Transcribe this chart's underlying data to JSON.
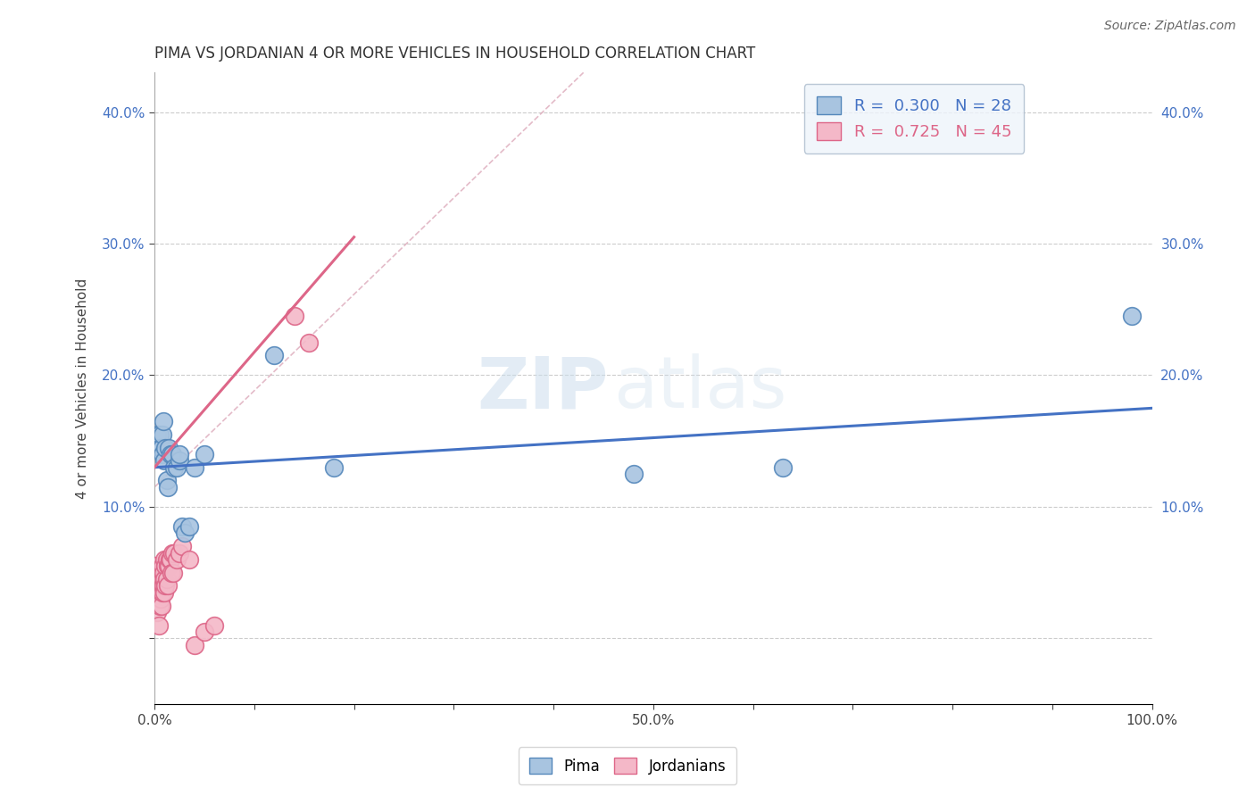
{
  "title": "PIMA VS JORDANIAN 4 OR MORE VEHICLES IN HOUSEHOLD CORRELATION CHART",
  "source_text": "Source: ZipAtlas.com",
  "xlabel": "",
  "ylabel": "4 or more Vehicles in Household",
  "xlim": [
    0,
    1.0
  ],
  "ylim": [
    -0.05,
    0.43
  ],
  "xticks": [
    0.0,
    0.1,
    0.2,
    0.3,
    0.4,
    0.5,
    0.6,
    0.7,
    0.8,
    0.9,
    1.0
  ],
  "xticklabels": [
    "0.0%",
    "",
    "",
    "",
    "",
    "50.0%",
    "",
    "",
    "",
    "",
    "100.0%"
  ],
  "yticks": [
    0.0,
    0.1,
    0.2,
    0.3,
    0.4
  ],
  "yticklabels": [
    "",
    "10.0%",
    "20.0%",
    "30.0%",
    "40.0%"
  ],
  "background_color": "#ffffff",
  "grid_color": "#cccccc",
  "watermark_zip": "ZIP",
  "watermark_atlas": "atlas",
  "pima_color": "#a8c4e0",
  "pima_edge_color": "#5588bb",
  "jordanian_color": "#f4b8c8",
  "jordanian_edge_color": "#dd6688",
  "pima_R": 0.3,
  "pima_N": 28,
  "jordanian_R": 0.725,
  "jordanian_N": 45,
  "pima_line_color": "#4472c4",
  "jordanian_line_color": "#dd6688",
  "ref_line_color": "#ddaabb",
  "pima_scatter_x": [
    0.003,
    0.005,
    0.006,
    0.007,
    0.008,
    0.008,
    0.009,
    0.01,
    0.011,
    0.012,
    0.013,
    0.014,
    0.016,
    0.018,
    0.02,
    0.022,
    0.025,
    0.025,
    0.028,
    0.03,
    0.035,
    0.04,
    0.05,
    0.12,
    0.18,
    0.48,
    0.63,
    0.98
  ],
  "pima_scatter_y": [
    0.155,
    0.155,
    0.145,
    0.145,
    0.14,
    0.155,
    0.165,
    0.135,
    0.145,
    0.12,
    0.115,
    0.145,
    0.14,
    0.14,
    0.13,
    0.13,
    0.135,
    0.14,
    0.085,
    0.08,
    0.085,
    0.13,
    0.14,
    0.215,
    0.13,
    0.125,
    0.13,
    0.245
  ],
  "jordanian_scatter_x": [
    0.001,
    0.002,
    0.003,
    0.003,
    0.004,
    0.004,
    0.005,
    0.005,
    0.005,
    0.006,
    0.006,
    0.006,
    0.007,
    0.007,
    0.007,
    0.008,
    0.008,
    0.008,
    0.009,
    0.009,
    0.01,
    0.01,
    0.01,
    0.011,
    0.011,
    0.012,
    0.012,
    0.013,
    0.013,
    0.014,
    0.015,
    0.016,
    0.017,
    0.018,
    0.019,
    0.02,
    0.022,
    0.025,
    0.028,
    0.035,
    0.04,
    0.05,
    0.06,
    0.14,
    0.155
  ],
  "jordanian_scatter_y": [
    0.055,
    0.04,
    0.035,
    0.02,
    0.03,
    0.01,
    0.045,
    0.035,
    0.025,
    0.05,
    0.04,
    0.03,
    0.045,
    0.035,
    0.025,
    0.055,
    0.045,
    0.035,
    0.05,
    0.04,
    0.06,
    0.045,
    0.035,
    0.055,
    0.04,
    0.06,
    0.045,
    0.055,
    0.04,
    0.055,
    0.06,
    0.06,
    0.05,
    0.065,
    0.05,
    0.065,
    0.06,
    0.065,
    0.07,
    0.06,
    -0.005,
    0.005,
    0.01,
    0.245,
    0.225
  ],
  "pima_trend_x": [
    0.0,
    1.0
  ],
  "pima_trend_y": [
    0.13,
    0.175
  ],
  "jordan_trend_x": [
    0.0,
    0.2
  ],
  "jordan_trend_y": [
    0.13,
    0.305
  ],
  "ref_line_x": [
    0.0,
    0.43
  ],
  "ref_line_y": [
    0.115,
    0.43
  ],
  "legend_box_color": "#eef4fb",
  "legend_border_color": "#aabbcc"
}
